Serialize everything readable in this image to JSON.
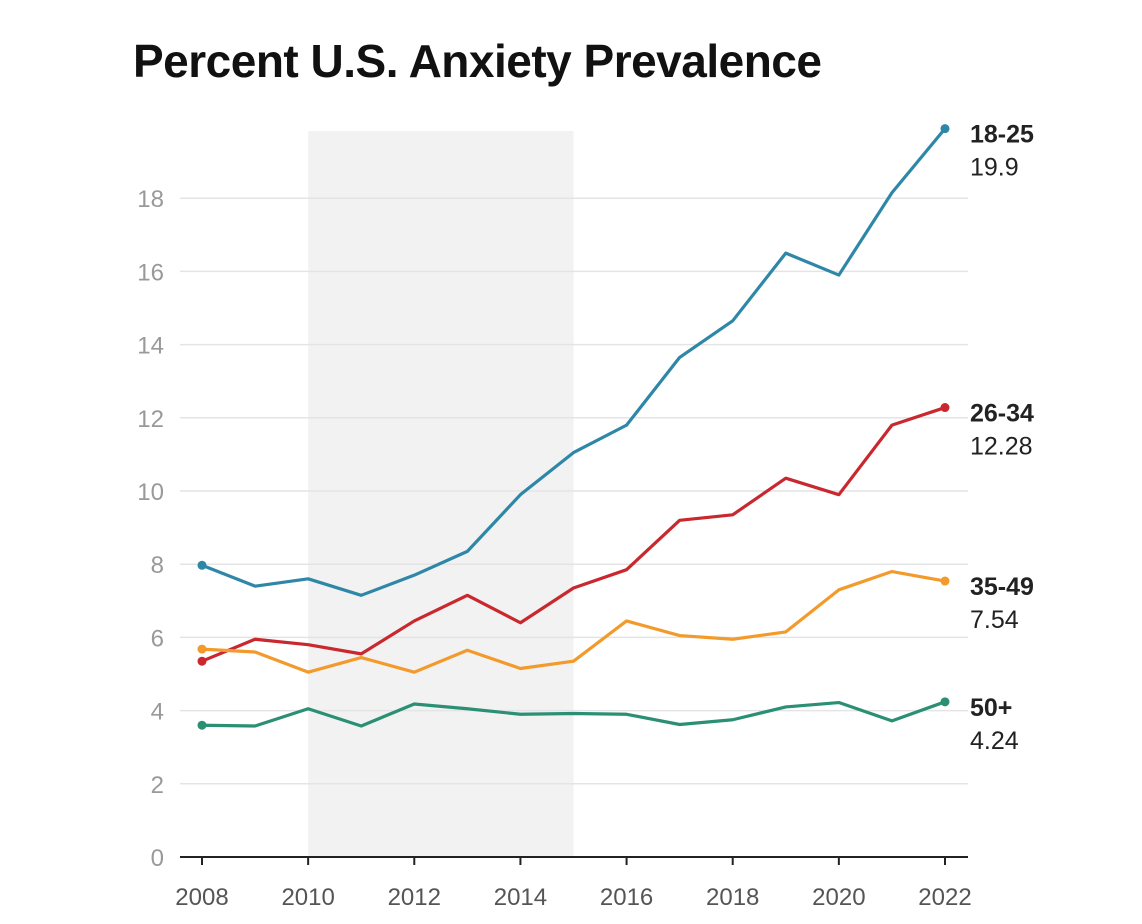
{
  "chart_data": {
    "type": "line",
    "title": "Percent U.S. Anxiety Prevalence",
    "x": [
      2008,
      2009,
      2010,
      2011,
      2012,
      2013,
      2014,
      2015,
      2016,
      2017,
      2018,
      2019,
      2020,
      2021,
      2022
    ],
    "xlim": [
      2008,
      2022
    ],
    "ylim": [
      0,
      20
    ],
    "x_ticks": [
      2008,
      2010,
      2012,
      2014,
      2016,
      2018,
      2020,
      2022
    ],
    "y_ticks": [
      0,
      2,
      4,
      6,
      8,
      10,
      12,
      14,
      16,
      18
    ],
    "grid": true,
    "legend": "end-of-line labels",
    "shaded_region": {
      "x_start": 2010,
      "x_end": 2015,
      "color": "#f2f2f2"
    },
    "series": [
      {
        "name": "18-25",
        "color": "#2f87a8",
        "end_label": "19.9",
        "values": [
          7.97,
          7.4,
          7.6,
          7.15,
          7.7,
          8.35,
          9.9,
          11.05,
          11.8,
          13.65,
          14.65,
          16.5,
          15.9,
          18.15,
          19.9
        ]
      },
      {
        "name": "26-34",
        "color": "#c8282e",
        "end_label": "12.28",
        "values": [
          5.35,
          5.95,
          5.8,
          5.55,
          6.45,
          7.15,
          6.4,
          7.35,
          7.85,
          9.2,
          9.35,
          10.35,
          9.9,
          11.8,
          12.28
        ]
      },
      {
        "name": "35-49",
        "color": "#f39a2c",
        "end_label": "7.54",
        "values": [
          5.68,
          5.6,
          5.05,
          5.45,
          5.05,
          5.65,
          5.15,
          5.35,
          6.45,
          6.05,
          5.95,
          6.15,
          7.3,
          7.8,
          7.54
        ]
      },
      {
        "name": "50+",
        "color": "#2b8f74",
        "end_label": "4.24",
        "values": [
          3.6,
          3.58,
          4.05,
          3.58,
          4.18,
          4.05,
          3.9,
          3.92,
          3.9,
          3.62,
          3.75,
          4.1,
          4.22,
          3.72,
          4.24
        ]
      }
    ]
  }
}
